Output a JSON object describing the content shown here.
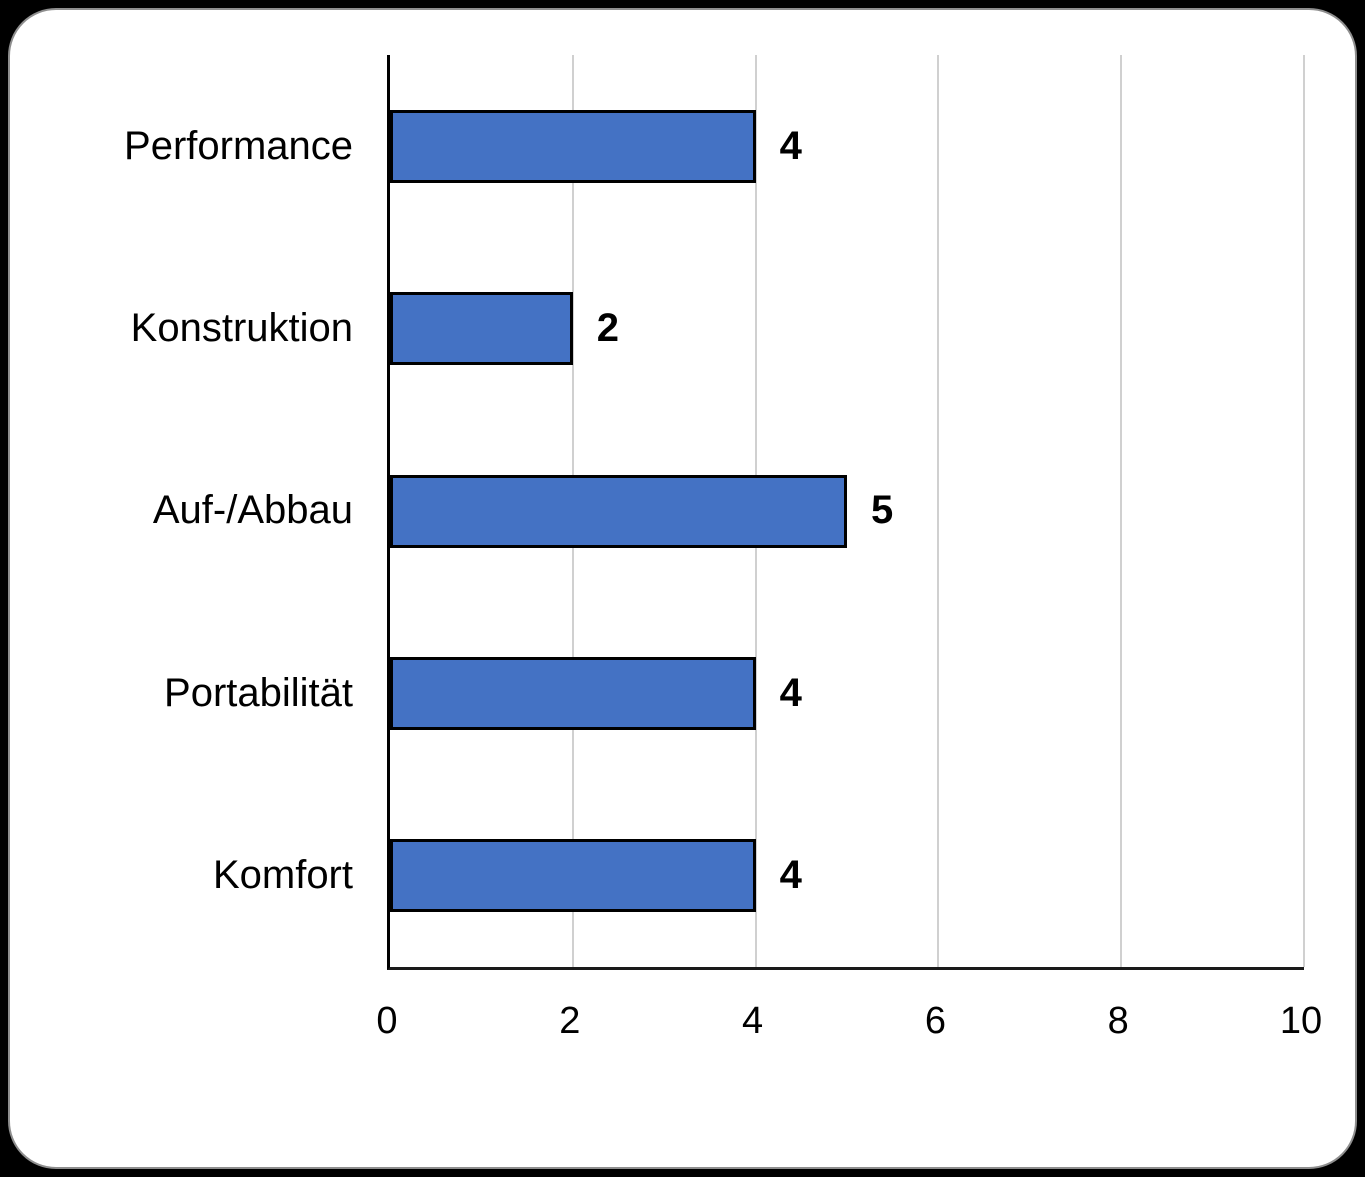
{
  "page": {
    "background_color": "#000000",
    "card_background": "#ffffff",
    "card_border_color": "#8e8e8e"
  },
  "chart_data": {
    "type": "bar",
    "orientation": "horizontal",
    "title": "",
    "xlabel": "",
    "ylabel": "",
    "categories": [
      "Performance",
      "Konstruktion",
      "Auf-/Abbau",
      "Portabilität",
      "Komfort"
    ],
    "values": [
      4,
      2,
      5,
      4,
      4
    ],
    "data_labels": [
      "4",
      "2",
      "5",
      "4",
      "4"
    ],
    "xlim": [
      0,
      10
    ],
    "x_ticks": [
      0,
      2,
      4,
      6,
      8,
      10
    ],
    "grid": true,
    "legend": false,
    "bar_color": "#4472C4",
    "bar_border_color": "#000000",
    "gridline_color": "#d0d0d0",
    "axis_color": "#000000",
    "text_color": "#000000"
  }
}
